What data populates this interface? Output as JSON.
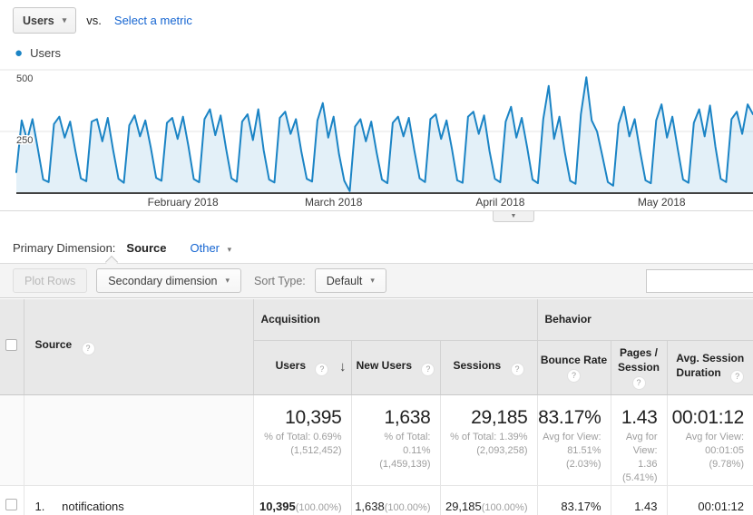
{
  "icons": {
    "dropdown_caret": "▾",
    "link_caret": "▾",
    "collapse_arrow": "▼",
    "sort_desc_arrow": "↓",
    "help": "?",
    "legend_dot": "●"
  },
  "metric_bar": {
    "metric_selector_value": "Users",
    "vs_label": "vs.",
    "select_metric_label": "Select a metric"
  },
  "legend": {
    "label": "Users"
  },
  "chart_data": {
    "type": "line",
    "title": "Users",
    "granularity": "daily",
    "legend_position": "top-left",
    "grid": "horizontal",
    "line_color": "#1b84c5",
    "fill_color": "rgba(27,132,197,0.12)",
    "ylim": [
      0,
      500
    ],
    "y_ticks": [
      {
        "value": 250,
        "label": "250"
      },
      {
        "value": 500,
        "label": "500"
      }
    ],
    "x_ticks": [
      {
        "label": "February 2018",
        "day_index": 31
      },
      {
        "label": "March 2018",
        "day_index": 59
      },
      {
        "label": "April 2018",
        "day_index": 90
      },
      {
        "label": "May 2018",
        "day_index": 120
      }
    ],
    "values": [
      85,
      295,
      215,
      300,
      180,
      55,
      45,
      280,
      310,
      225,
      290,
      170,
      60,
      48,
      290,
      300,
      210,
      305,
      175,
      58,
      42,
      275,
      315,
      230,
      295,
      185,
      62,
      50,
      285,
      305,
      220,
      310,
      190,
      57,
      44,
      300,
      340,
      235,
      315,
      180,
      60,
      46,
      290,
      320,
      215,
      340,
      175,
      55,
      43,
      305,
      330,
      240,
      300,
      170,
      58,
      47,
      295,
      365,
      225,
      310,
      160,
      50,
      8,
      270,
      300,
      210,
      290,
      165,
      55,
      40,
      285,
      310,
      230,
      305,
      175,
      60,
      45,
      300,
      320,
      220,
      295,
      180,
      52,
      42,
      310,
      330,
      240,
      315,
      170,
      58,
      44,
      290,
      350,
      225,
      305,
      185,
      55,
      40,
      300,
      435,
      220,
      310,
      165,
      50,
      38,
      320,
      470,
      295,
      250,
      150,
      45,
      30,
      280,
      350,
      230,
      300,
      170,
      52,
      40,
      295,
      360,
      225,
      310,
      180,
      55,
      42,
      285,
      340,
      230,
      355,
      190,
      58,
      45,
      300,
      330,
      240,
      360,
      320
    ]
  },
  "primary_dimension": {
    "label": "Primary Dimension:",
    "selected": "Source",
    "other_label": "Other"
  },
  "toolbar": {
    "plot_rows_label": "Plot Rows",
    "secondary_dimension_label": "Secondary dimension",
    "sort_type_label": "Sort Type:",
    "sort_value": "Default",
    "search_value": ""
  },
  "table": {
    "groups": {
      "acquisition": "Acquisition",
      "behavior": "Behavior"
    },
    "columns": {
      "source": "Source",
      "users": "Users",
      "new_users": "New Users",
      "sessions": "Sessions",
      "bounce_rate": "Bounce Rate",
      "pages_session": [
        "Pages /",
        "Session"
      ],
      "avg_duration": "Avg. Session Duration"
    },
    "summary": {
      "users_value": "10,395",
      "users_note": [
        "% of Total: 0.69%",
        "(1,512,452)"
      ],
      "new_users_value": "1,638",
      "new_users_note": [
        "% of Total:",
        "0.11%",
        "(1,459,139)"
      ],
      "sessions_value": "29,185",
      "sessions_note": [
        "% of Total: 1.39%",
        "(2,093,258)"
      ],
      "bounce_value": "83.17%",
      "bounce_note": [
        "Avg for View:",
        "81.51%",
        "(2.03%)"
      ],
      "pages_value": "1.43",
      "pages_note": [
        "Avg for",
        "View:",
        "1.36",
        "(5.41%)"
      ],
      "duration_value": "00:01:12",
      "duration_note": [
        "Avg for View:",
        "00:01:05",
        "(9.78%)"
      ]
    },
    "rows": [
      {
        "index": "1.",
        "source": "notifications",
        "users": "10,395",
        "users_pct": "(100.00%)",
        "new_users": "1,638",
        "new_users_pct": "(100.00%)",
        "sessions": "29,185",
        "sessions_pct": "(100.00%)",
        "bounce_rate": "83.17%",
        "pages_session": "1.43",
        "avg_duration": "00:01:12"
      }
    ]
  }
}
